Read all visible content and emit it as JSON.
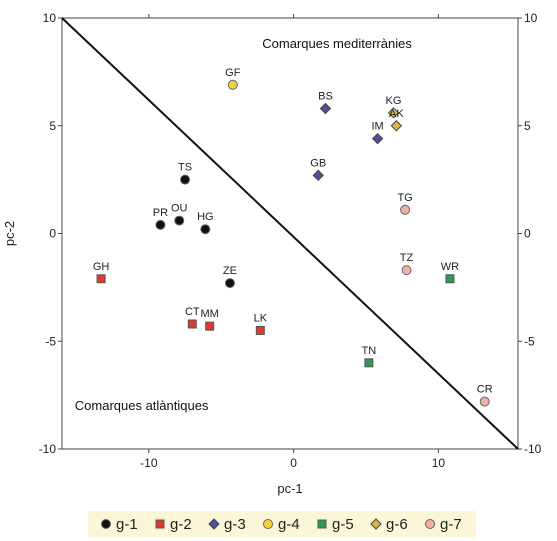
{
  "chart_data": {
    "type": "scatter",
    "xlabel": "pc-1",
    "ylabel": "pc-2",
    "xlim": [
      -16,
      15.5
    ],
    "ylim": [
      -10,
      10
    ],
    "xticks": [
      -10,
      0,
      10
    ],
    "yticks": [
      -10,
      -5,
      0,
      5,
      10
    ],
    "grid": false,
    "legend_position": "bottom",
    "annotations": [
      {
        "text": "Comarques mediterrànies",
        "x": 3,
        "y": 8.6
      },
      {
        "text": "Comarques atlàntiques",
        "x": -10.5,
        "y": -8.2
      }
    ],
    "divider_line": {
      "x": [
        -16,
        15.5
      ],
      "y": [
        10,
        -10
      ]
    },
    "groups": [
      {
        "name": "g-1",
        "marker": "circle",
        "color": "#111111",
        "points": [
          {
            "label": "TS",
            "x": -7.5,
            "y": 2.5
          },
          {
            "label": "PR",
            "x": -9.2,
            "y": 0.4
          },
          {
            "label": "OU",
            "x": -7.9,
            "y": 0.6
          },
          {
            "label": "HG",
            "x": -6.1,
            "y": 0.2
          },
          {
            "label": "ZE",
            "x": -4.4,
            "y": -2.3
          }
        ]
      },
      {
        "name": "g-2",
        "marker": "square",
        "color": "#e03a2f",
        "points": [
          {
            "label": "GH",
            "x": -13.3,
            "y": -2.1
          },
          {
            "label": "CT",
            "x": -7.0,
            "y": -4.2
          },
          {
            "label": "MM",
            "x": -5.8,
            "y": -4.3
          },
          {
            "label": "LK",
            "x": -2.3,
            "y": -4.5
          }
        ]
      },
      {
        "name": "g-3",
        "marker": "diamond",
        "color": "#4d4f9a",
        "points": [
          {
            "label": "BS",
            "x": 2.2,
            "y": 5.8
          },
          {
            "label": "IM",
            "x": 5.8,
            "y": 4.4
          },
          {
            "label": "GB",
            "x": 1.7,
            "y": 2.7
          }
        ]
      },
      {
        "name": "g-4",
        "marker": "circle",
        "color": "#f4d23c",
        "points": [
          {
            "label": "GF",
            "x": -4.2,
            "y": 6.9
          }
        ]
      },
      {
        "name": "g-5",
        "marker": "square",
        "color": "#2f9a58",
        "points": [
          {
            "label": "WR",
            "x": 10.8,
            "y": -2.1
          },
          {
            "label": "TN",
            "x": 5.2,
            "y": -6.0
          }
        ]
      },
      {
        "name": "g-6",
        "marker": "diamond",
        "color": "#e0b44a",
        "points": [
          {
            "label": "KG",
            "x": 6.9,
            "y": 5.6
          },
          {
            "label": "AK",
            "x": 7.1,
            "y": 5.0
          }
        ]
      },
      {
        "name": "g-7",
        "marker": "circle",
        "color": "#f2b0a4",
        "points": [
          {
            "label": "TG",
            "x": 7.7,
            "y": 1.1
          },
          {
            "label": "TZ",
            "x": 7.8,
            "y": -1.7
          },
          {
            "label": "CR",
            "x": 13.2,
            "y": -7.8
          }
        ]
      }
    ]
  }
}
